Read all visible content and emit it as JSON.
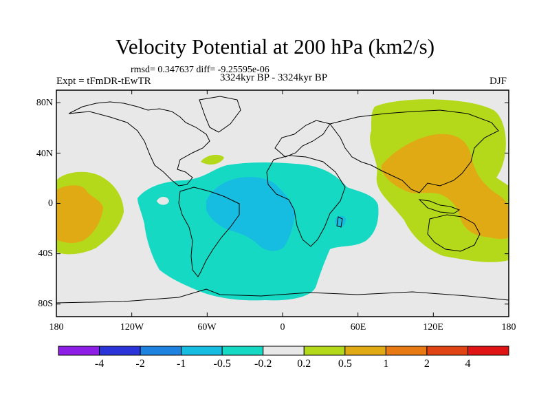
{
  "title": "Velocity Potential at 200 hPa (km2/s)",
  "stats": "rmsd= 0.347637 diff= -9.25595e-06",
  "experiment": "Expt = tFmDR-tEwTR",
  "period": "3324kyr BP - 3324kyr BP",
  "season": "DJF",
  "lat_labels": [
    "80N",
    "40N",
    "0",
    "40S",
    "80S"
  ],
  "lon_labels": [
    "180",
    "120W",
    "60W",
    "0",
    "60E",
    "120E",
    "180"
  ],
  "colorbar": {
    "labels": [
      "-4",
      "-2",
      "-1",
      "-0.5",
      "-0.2",
      "0.2",
      "0.5",
      "1",
      "2",
      "4"
    ],
    "colors": [
      "#8c1ee6",
      "#2b34d9",
      "#1e82e0",
      "#16bde0",
      "#16d9c4",
      "#e8e8e8",
      "#b4d91a",
      "#dfaa14",
      "#e87a14",
      "#e04414",
      "#e01414"
    ]
  },
  "colors": {
    "background": "#e8e8e8",
    "neg_weak": "#16d9c4",
    "neg_mid": "#16bde0",
    "pos_weak": "#b4d91a",
    "pos_mid": "#dfaa14"
  }
}
